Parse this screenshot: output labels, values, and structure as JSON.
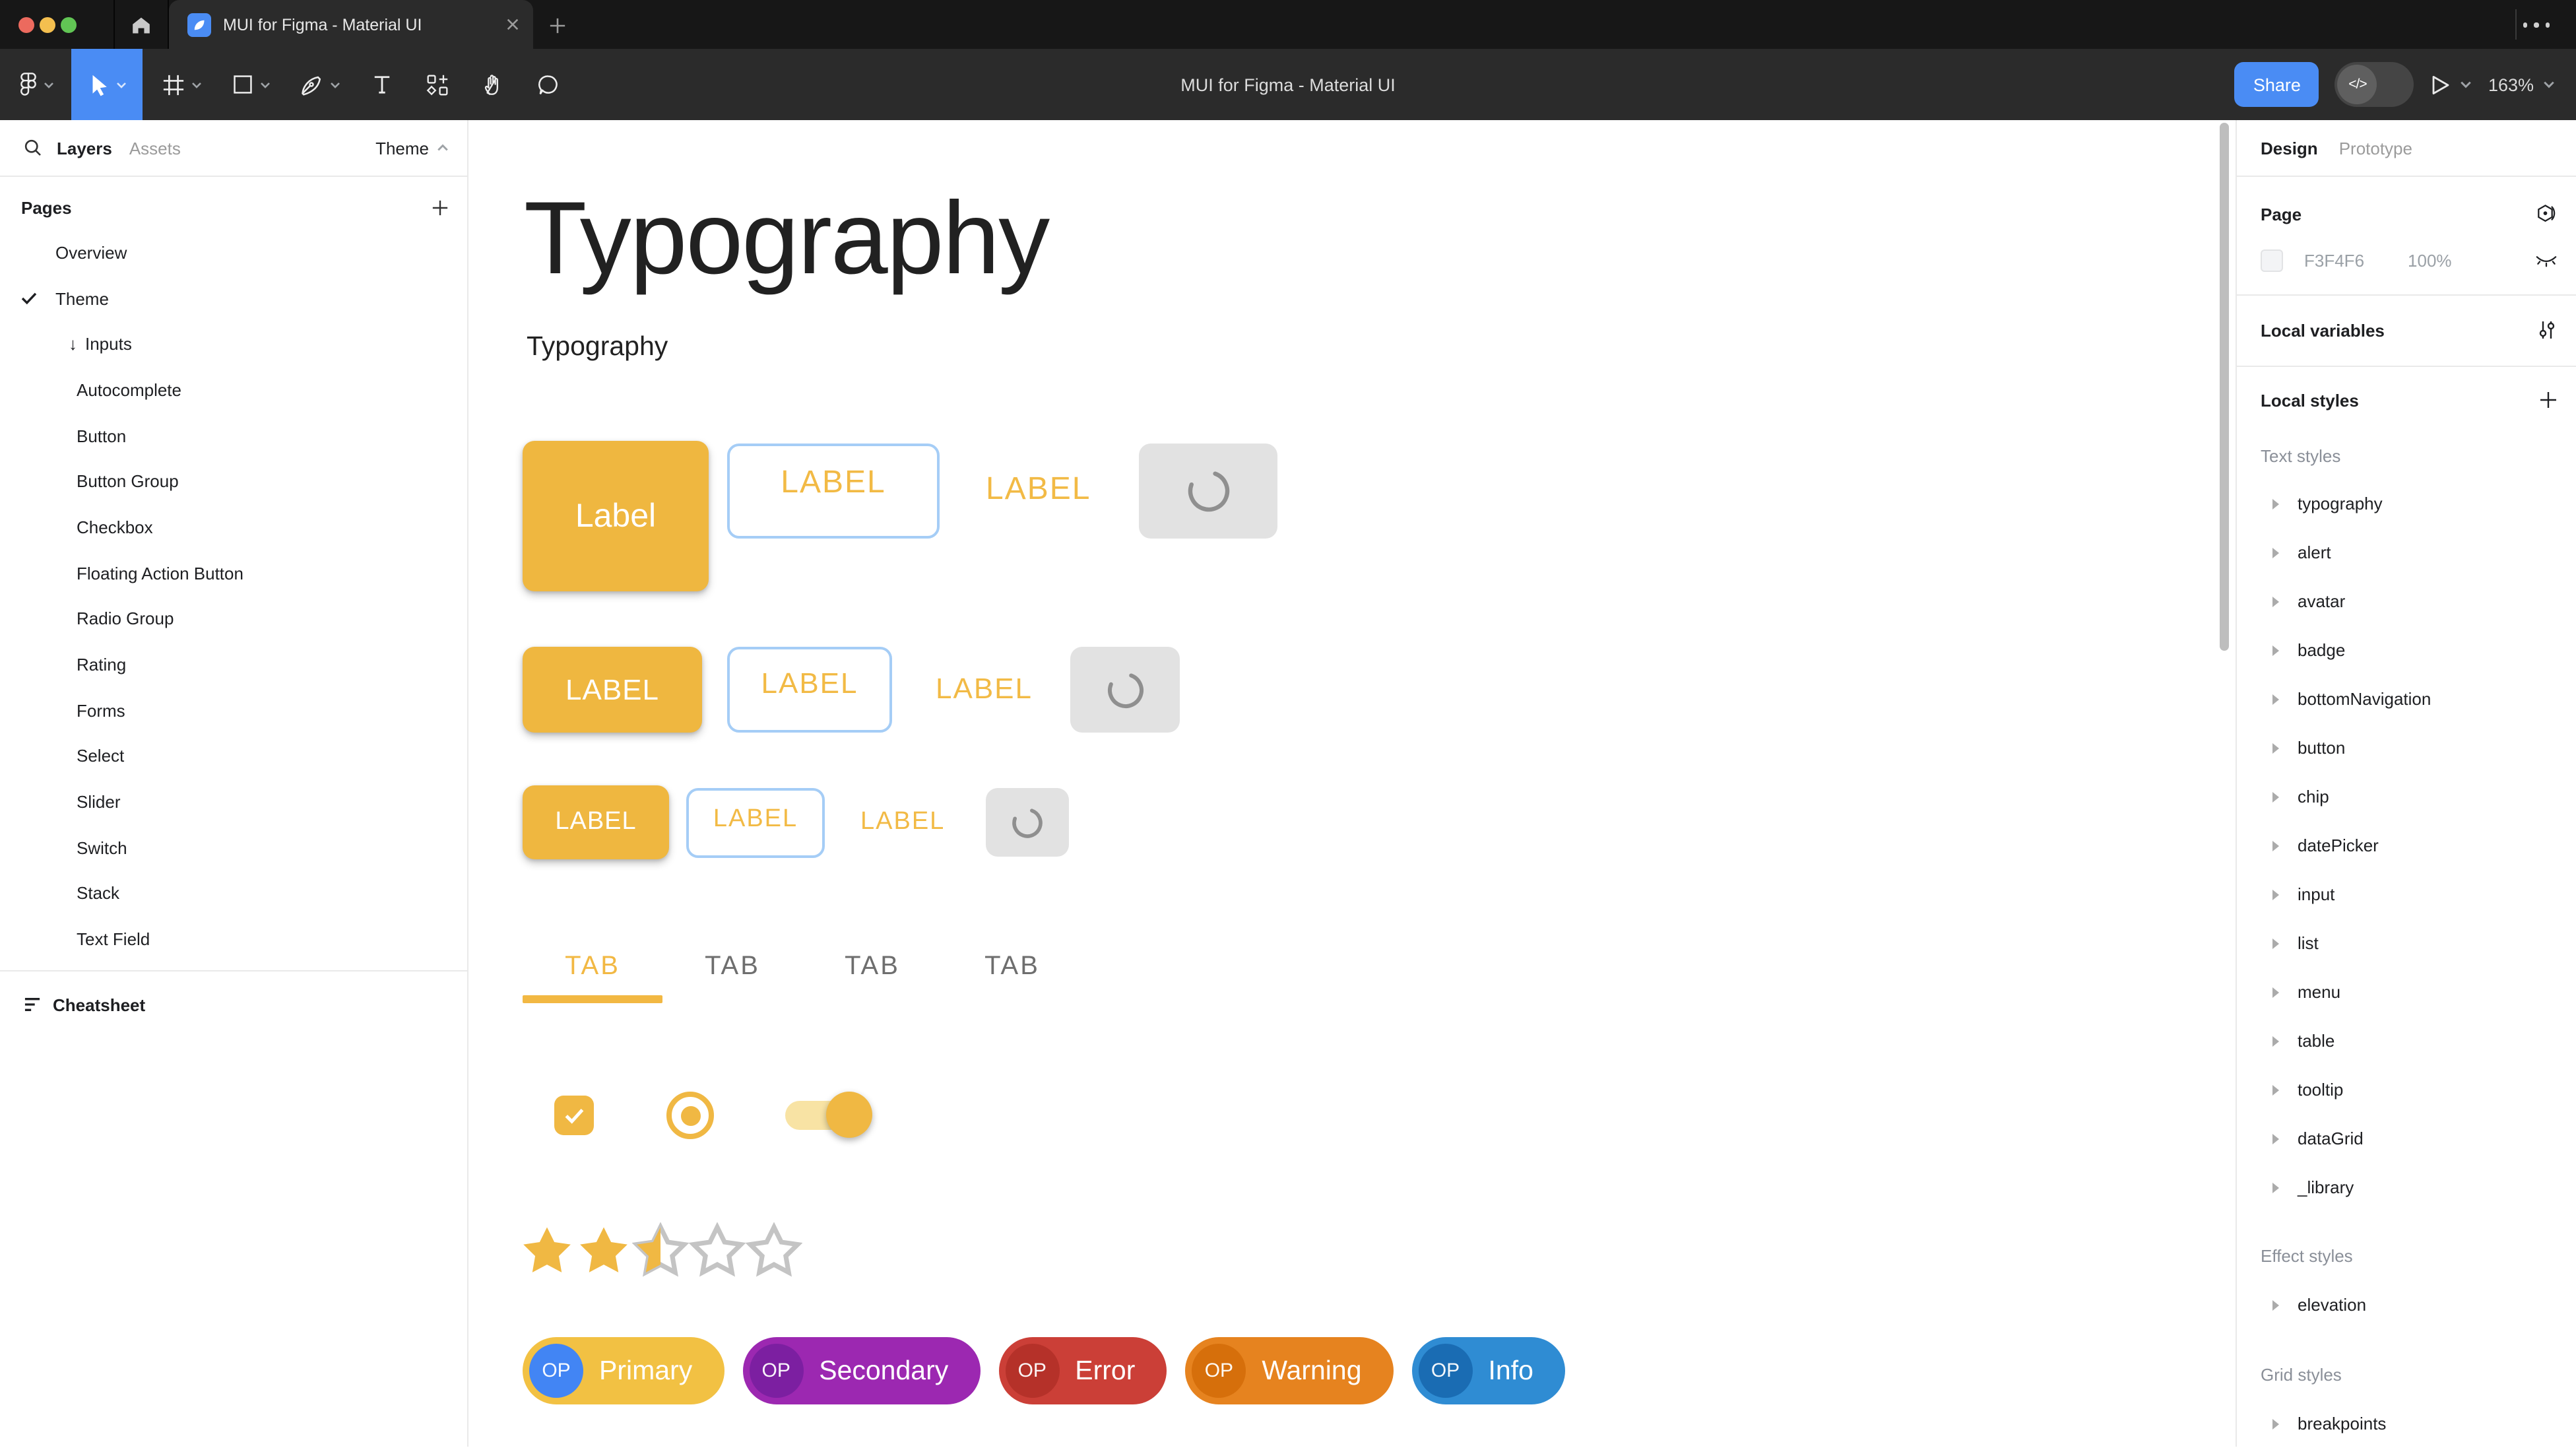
{
  "window": {
    "tab_title": "MUI for Figma - Material UI",
    "toolbar_title": "MUI for Figma - Material UI",
    "share_label": "Share",
    "zoom_level": "163%"
  },
  "left_panel": {
    "tabs": [
      {
        "label": "Layers",
        "active": true
      },
      {
        "label": "Assets",
        "active": false
      }
    ],
    "theme_selector": "Theme",
    "pages_header": "Pages",
    "pages": [
      {
        "label": "Overview",
        "indent": 1,
        "checked": false,
        "arrow": false
      },
      {
        "label": "Theme",
        "indent": 1,
        "checked": true,
        "arrow": false
      },
      {
        "label": "Inputs",
        "indent": 2,
        "checked": false,
        "arrow": true
      },
      {
        "label": "Autocomplete",
        "indent": 3,
        "checked": false,
        "arrow": false
      },
      {
        "label": "Button",
        "indent": 3,
        "checked": false,
        "arrow": false
      },
      {
        "label": "Button Group",
        "indent": 3,
        "checked": false,
        "arrow": false
      },
      {
        "label": "Checkbox",
        "indent": 3,
        "checked": false,
        "arrow": false
      },
      {
        "label": "Floating Action Button",
        "indent": 3,
        "checked": false,
        "arrow": false
      },
      {
        "label": "Radio Group",
        "indent": 3,
        "checked": false,
        "arrow": false
      },
      {
        "label": "Rating",
        "indent": 3,
        "checked": false,
        "arrow": false
      },
      {
        "label": "Forms",
        "indent": 3,
        "checked": false,
        "arrow": false
      },
      {
        "label": "Select",
        "indent": 3,
        "checked": false,
        "arrow": false
      },
      {
        "label": "Slider",
        "indent": 3,
        "checked": false,
        "arrow": false
      },
      {
        "label": "Switch",
        "indent": 3,
        "checked": false,
        "arrow": false
      },
      {
        "label": "Stack",
        "indent": 3,
        "checked": false,
        "arrow": false
      },
      {
        "label": "Text Field",
        "indent": 3,
        "checked": false,
        "arrow": false
      }
    ],
    "footer_label": "Cheatsheet"
  },
  "canvas": {
    "title": "Typography",
    "subtitle": "Typography",
    "button_rows": [
      {
        "size": "large",
        "contained": "Label",
        "outlined": "LABEL",
        "text": "LABEL"
      },
      {
        "size": "medium",
        "contained": "LABEL",
        "outlined": "LABEL",
        "text": "LABEL"
      },
      {
        "size": "small",
        "contained": "LABEL",
        "outlined": "LABEL",
        "text": "LABEL"
      }
    ],
    "tabs": [
      "TAB",
      "TAB",
      "TAB",
      "TAB"
    ],
    "active_tab_index": 0,
    "rating": {
      "value": 2.5,
      "max": 5
    },
    "chips": [
      {
        "label": "Primary",
        "avatar_text": "OP",
        "bg": "#f2c143",
        "avatar_bg": "#4285f4"
      },
      {
        "label": "Secondary",
        "avatar_text": "OP",
        "bg": "#9c28b1",
        "avatar_bg": "#7c1fa1"
      },
      {
        "label": "Error",
        "avatar_text": "OP",
        "bg": "#cb3f37",
        "avatar_bg": "#b53129"
      },
      {
        "label": "Warning",
        "avatar_text": "OP",
        "bg": "#e6831f",
        "avatar_bg": "#d66f0b"
      },
      {
        "label": "Info",
        "avatar_text": "OP",
        "bg": "#2f8cd3",
        "avatar_bg": "#1a6cb3"
      }
    ]
  },
  "right_panel": {
    "design_tab": "Design",
    "prototype_tab": "Prototype",
    "page_label": "Page",
    "page_fill": "F3F4F6",
    "page_opacity": "100%",
    "local_variables_label": "Local variables",
    "local_styles_label": "Local styles",
    "text_styles_label": "Text styles",
    "text_styles": [
      "typography",
      "alert",
      "avatar",
      "badge",
      "bottomNavigation",
      "button",
      "chip",
      "datePicker",
      "input",
      "list",
      "menu",
      "table",
      "tooltip",
      "dataGrid",
      "_library"
    ],
    "effect_styles_label": "Effect styles",
    "effect_styles": [
      "elevation"
    ],
    "grid_styles_label": "Grid styles",
    "grid_styles": [
      "breakpoints"
    ]
  },
  "colors": {
    "amber": "#f0b843",
    "amber_light_track": "#f8e3a4",
    "outlined_border": "#a5cdf6",
    "figma_blue": "#4a8cf4",
    "page_swatch": "#f3f4f6",
    "star_empty": "#c4c4c4",
    "loading_bg": "#e2e2e2",
    "spinner": "#8f8f8f"
  },
  "icons": {
    "traffic_lights": "red-yellow-green window controls",
    "home": "house",
    "figma_menu": "figma-logo",
    "move_tool": "cursor-arrow",
    "frame_tool": "hash-frame",
    "shape_tool": "rectangle",
    "pen_tool": "pen-nib",
    "text_tool": "letter-T",
    "resources_tool": "square-plus-diamond grid",
    "hand_tool": "open-hand",
    "comment_tool": "speech-bubble",
    "dev_mode_toggle": "code brackets </>",
    "play": "triangle outline",
    "search": "magnifier",
    "styles_badge": "hexagon with dot",
    "hidden_eye": "closed eye",
    "variables": "vertical sliders",
    "add": "plus",
    "disclosure": "right triangle"
  }
}
